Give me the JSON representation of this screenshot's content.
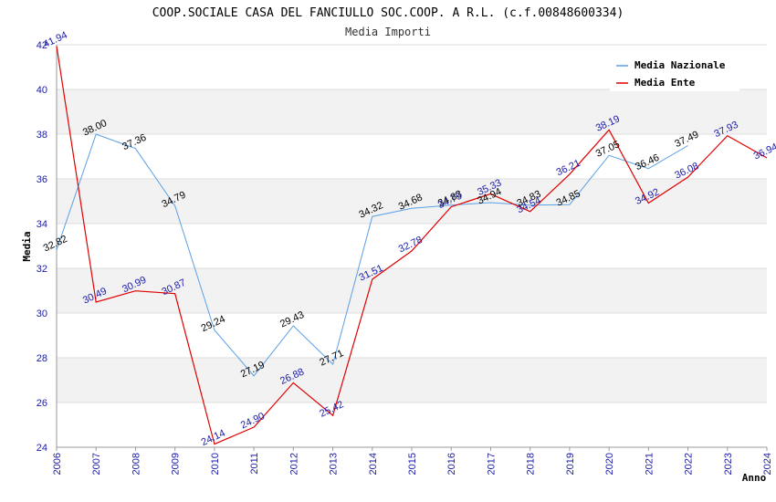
{
  "chart_data": {
    "type": "line",
    "title": "COOP.SOCIALE CASA DEL FANCIULLO SOC.COOP. A R.L. (c.f.00848600334)",
    "subtitle": "Media Importi",
    "xlabel": "Anno",
    "ylabel": "Media",
    "ylim": [
      24,
      42
    ],
    "yticks": [
      "24",
      "26",
      "28",
      "30",
      "32",
      "34",
      "36",
      "38",
      "40",
      "42"
    ],
    "categories": [
      "2006",
      "2007",
      "2008",
      "2009",
      "2010",
      "2011",
      "2012",
      "2013",
      "2014",
      "2015",
      "2016",
      "2017",
      "2018",
      "2019",
      "2020",
      "2021",
      "2022",
      "2023",
      "2024"
    ],
    "grid": true,
    "legend_position": "top-right",
    "series": [
      {
        "name": "Media Nazionale",
        "color": "#5aa0e6",
        "label_color": "#000000",
        "values": [
          32.82,
          38.0,
          37.36,
          34.79,
          29.24,
          27.19,
          29.43,
          27.71,
          34.32,
          34.68,
          34.83,
          34.94,
          34.83,
          34.85,
          37.05,
          36.46,
          37.49,
          null,
          null
        ],
        "labels": [
          "32.82",
          "38.00",
          "37.36",
          "34.79",
          "29.24",
          "27.19",
          "29.43",
          "27.71",
          "34.32",
          "34.68",
          "34.83",
          "34.94",
          "34.83",
          "34.85",
          "37.05",
          "36.46",
          "37.49",
          null,
          null
        ]
      },
      {
        "name": "Media Ente",
        "color": "#e00000",
        "label_color": "#1a1aa8",
        "values": [
          41.94,
          30.49,
          30.99,
          30.87,
          24.14,
          24.9,
          26.88,
          25.42,
          31.51,
          32.78,
          34.75,
          35.33,
          34.54,
          36.21,
          38.19,
          34.92,
          36.08,
          37.93,
          36.94
        ],
        "labels": [
          "41.94",
          "30.49",
          "30.99",
          "30.87",
          "24.14",
          "24.90",
          "26.88",
          "25.42",
          "31.51",
          "32.78",
          "34.75",
          "35.33",
          "34.54",
          "36.21",
          "38.19",
          "34.92",
          "36.08",
          "37.93",
          "36.94"
        ]
      }
    ]
  }
}
